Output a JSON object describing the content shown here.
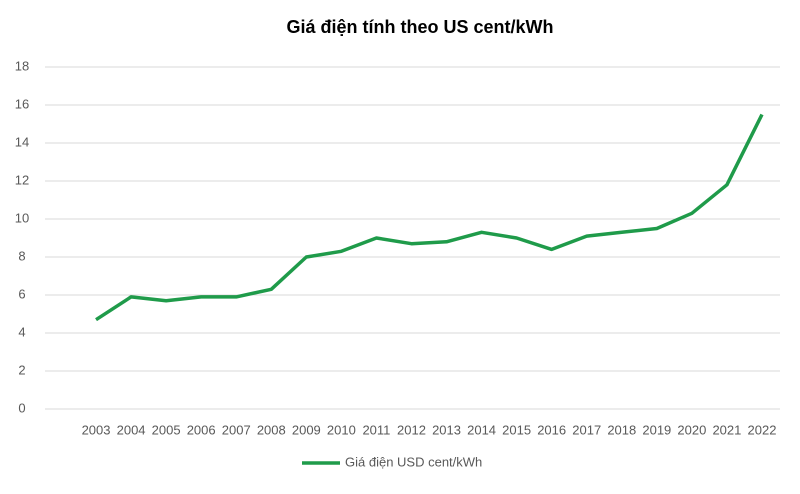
{
  "chart_data": {
    "type": "line",
    "title": "Giá điện tính theo US cent/kWh",
    "categories": [
      "2003",
      "2004",
      "2005",
      "2006",
      "2007",
      "2008",
      "2009",
      "2010",
      "2011",
      "2012",
      "2013",
      "2014",
      "2015",
      "2016",
      "2017",
      "2018",
      "2019",
      "2020",
      "2021",
      "2022"
    ],
    "series": [
      {
        "name": "Giá điện USD cent/kWh",
        "color": "#1f9b4a",
        "values": [
          4.7,
          5.9,
          5.7,
          5.9,
          5.9,
          6.3,
          8.0,
          8.3,
          9.0,
          8.7,
          8.8,
          9.3,
          9.0,
          8.4,
          9.1,
          9.3,
          9.5,
          10.3,
          11.8,
          15.5
        ]
      }
    ],
    "ylim": [
      0,
      18
    ],
    "yticks": [
      0,
      2,
      4,
      6,
      8,
      10,
      12,
      14,
      16,
      18
    ],
    "grid": true,
    "legend": "bottom"
  }
}
